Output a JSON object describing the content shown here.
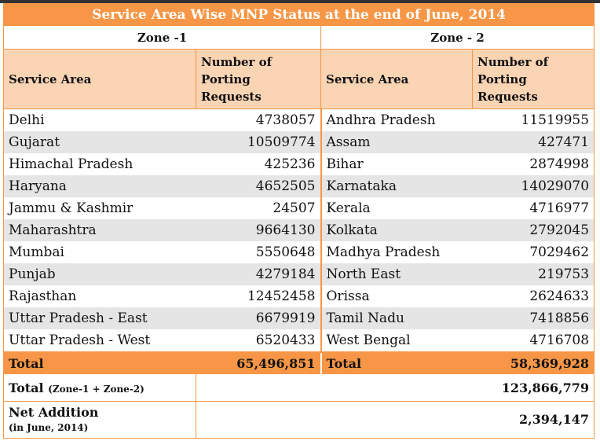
{
  "title": "Service Area Wise MNP Status at the end of June, 2014",
  "zones": {
    "zone1": "Zone -1",
    "zone2": "Zone - 2"
  },
  "headers": {
    "service_area": "Service Area",
    "porting_line1": "Number of",
    "porting_line2": "Porting",
    "porting_line3": "Requests"
  },
  "rows": [
    {
      "z1_area": "Delhi",
      "z1_count": "4738057",
      "z2_area": "Andhra Pradesh",
      "z2_count": "11519955"
    },
    {
      "z1_area": "Gujarat",
      "z1_count": "10509774",
      "z2_area": "Assam",
      "z2_count": "427471"
    },
    {
      "z1_area": "Himachal Pradesh",
      "z1_count": "425236",
      "z2_area": "Bihar",
      "z2_count": "2874998"
    },
    {
      "z1_area": "Haryana",
      "z1_count": "4652505",
      "z2_area": "Karnataka",
      "z2_count": "14029070"
    },
    {
      "z1_area": "Jammu & Kashmir",
      "z1_count": "24507",
      "z2_area": "Kerala",
      "z2_count": "4716977"
    },
    {
      "z1_area": "Maharashtra",
      "z1_count": "9664130",
      "z2_area": "Kolkata",
      "z2_count": "2792045"
    },
    {
      "z1_area": "Mumbai",
      "z1_count": "5550648",
      "z2_area": "Madhya Pradesh",
      "z2_count": "7029462"
    },
    {
      "z1_area": "Punjab",
      "z1_count": "4279184",
      "z2_area": "North East",
      "z2_count": "219753"
    },
    {
      "z1_area": "Rajasthan",
      "z1_count": "12452458",
      "z2_area": "Orissa",
      "z2_count": "2624633"
    },
    {
      "z1_area": "Uttar Pradesh - East",
      "z1_count": "6679919",
      "z2_area": "Tamil Nadu",
      "z2_count": "7418856"
    },
    {
      "z1_area": "Uttar Pradesh - West",
      "z1_count": "6520433",
      "z2_area": "West Bengal",
      "z2_count": "4716708"
    }
  ],
  "totals": {
    "label": "Total",
    "zone1": "65,496,851",
    "zone2": "58,369,928"
  },
  "grand_total": {
    "label": "Total",
    "sub": "(Zone-1 + Zone-2)",
    "value": "123,866,779"
  },
  "net_addition": {
    "label": "Net Addition",
    "sub": "(in June, 2014)",
    "value": "2,394,147"
  },
  "colors": {
    "accent": "#f79646",
    "header_fill": "#fbd4b4",
    "stripe": "#e5e5e5"
  }
}
